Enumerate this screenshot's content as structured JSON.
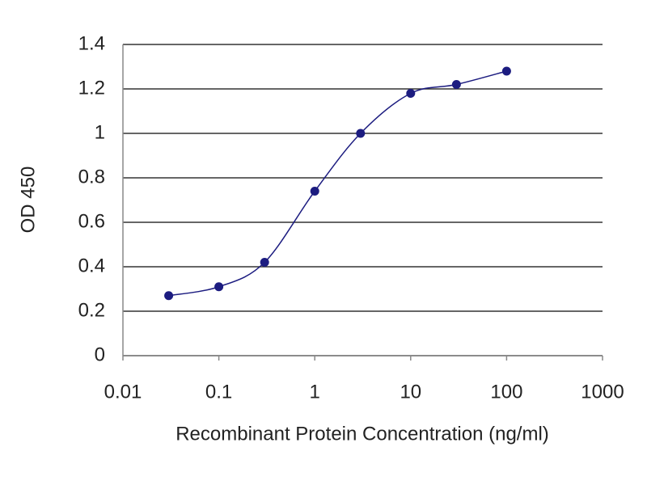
{
  "chart_data": {
    "type": "line",
    "xlabel": "Recombinant Protein Concentration (ng/ml)",
    "ylabel": "OD 450",
    "xscale": "log",
    "x": [
      0.03,
      0.1,
      0.3,
      1,
      3,
      10,
      30,
      100
    ],
    "series": [
      {
        "color": "#1c1c80",
        "values": [
          0.27,
          0.31,
          0.42,
          0.74,
          1.0,
          1.18,
          1.22,
          1.28
        ]
      }
    ],
    "xlim": [
      0.01,
      1000
    ],
    "xticks": [
      0.01,
      0.1,
      1,
      10,
      100,
      1000
    ],
    "ylim": [
      0,
      1.4
    ],
    "yticks": [
      0,
      0.2,
      0.4,
      0.6,
      0.8,
      1,
      1.2,
      1.4
    ],
    "grid": true
  }
}
